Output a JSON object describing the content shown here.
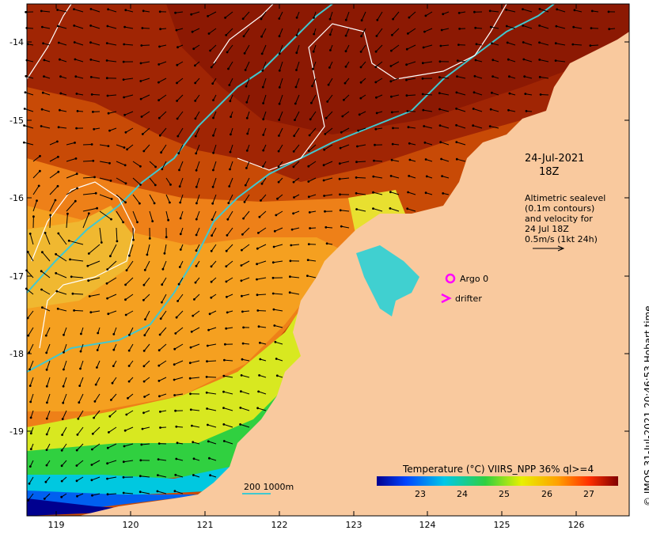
{
  "map": {
    "date": "24-Jul-2021",
    "time": "18Z",
    "info_lines": [
      "Altimetric sealevel",
      "(0.1m contours)",
      "and velocity for",
      "24 Jul 18Z",
      "0.5m/s (1kt 24h)"
    ],
    "lon_ticks": [
      "119",
      "120",
      "121",
      "122",
      "123",
      "124",
      "125",
      "126"
    ],
    "lat_ticks": [
      "-14",
      "-15",
      "-16",
      "-17",
      "-18",
      "-19"
    ],
    "argo_label": "Argo 0",
    "drifter_label": "drifter",
    "bathy_label": "200  1000m",
    "colorbar_title": "Temperature (°C) VIIRS_NPP 36% ql>=4",
    "colorbar_ticks": [
      "23",
      "24",
      "25",
      "26",
      "27"
    ],
    "credit": "© IMOS 31-Jul-2021 20:46:53 Hobart time",
    "colors": {
      "land": "#f9c99e",
      "bathymetry": "#40c8d0",
      "argo_marker": "#ff00ff",
      "contours": "#ffffff"
    }
  }
}
